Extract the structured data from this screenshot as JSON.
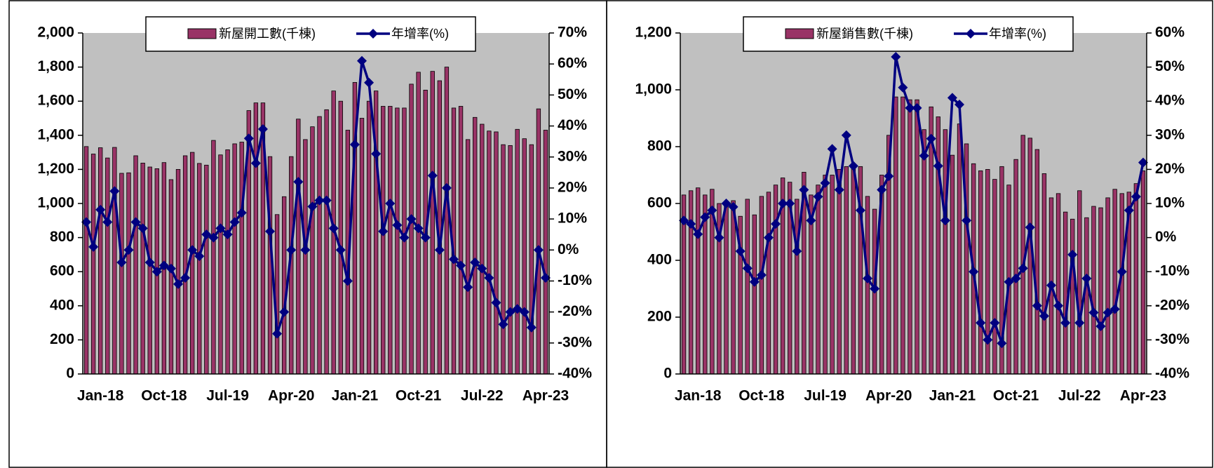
{
  "chart_data": [
    {
      "type": "combo",
      "categories": [
        "Jan-18",
        null,
        null,
        null,
        null,
        null,
        null,
        null,
        null,
        "Oct-18",
        null,
        null,
        null,
        null,
        null,
        null,
        null,
        null,
        "Jul-19",
        null,
        null,
        null,
        null,
        null,
        null,
        null,
        null,
        "Apr-20",
        null,
        null,
        null,
        null,
        null,
        null,
        null,
        null,
        "Jan-21",
        null,
        null,
        null,
        null,
        null,
        null,
        null,
        null,
        "Oct-21",
        null,
        null,
        null,
        null,
        null,
        null,
        null,
        null,
        "Jul-22",
        null,
        null,
        null,
        null,
        null,
        null,
        null,
        null,
        "Apr-23",
        null,
        null
      ],
      "series": [
        {
          "name": "新屋開工數(千棟)",
          "color": "#993366",
          "type": "bar",
          "values": [
            1334,
            1290,
            1327,
            1267,
            1329,
            1177,
            1180,
            1280,
            1237,
            1214,
            1204,
            1240,
            1140,
            1200,
            1280,
            1300,
            1235,
            1225,
            1370,
            1285,
            1315,
            1350,
            1360,
            1545,
            1590,
            1590,
            1275,
            935,
            1040,
            1275,
            1495,
            1375,
            1450,
            1510,
            1550,
            1660,
            1600,
            1430,
            1710,
            1500,
            1600,
            1660,
            1570,
            1570,
            1560,
            1560,
            1700,
            1770,
            1665,
            1775,
            1720,
            1800,
            1560,
            1570,
            1375,
            1505,
            1465,
            1425,
            1420,
            1345,
            1340,
            1435,
            1380,
            1345,
            1555,
            1430
          ]
        },
        {
          "name": "年增率(%)",
          "color": "#000080",
          "type": "line",
          "axis": "y2",
          "values": [
            9,
            1,
            13,
            9,
            19,
            -4,
            0,
            9,
            7,
            -4,
            -7,
            -5,
            -6,
            -11,
            -9,
            0,
            -2,
            5,
            4,
            7,
            5,
            9,
            12,
            36,
            28,
            39,
            6,
            -27,
            -20,
            0,
            22,
            0,
            14,
            16,
            16,
            7,
            0,
            -10,
            34,
            61,
            54,
            31,
            6,
            15,
            8,
            4,
            10,
            7,
            4,
            24,
            0,
            20,
            -3,
            -5,
            -12,
            -4,
            -6,
            -9,
            -17,
            -24,
            -20,
            -19,
            -20,
            -25,
            0,
            -9
          ]
        }
      ],
      "ylim": [
        0,
        2000
      ],
      "yticks": [
        0,
        200,
        400,
        600,
        800,
        {
          "value": 1000,
          "label": "1,000"
        },
        {
          "value": 1200,
          "label": "1,200"
        },
        {
          "value": 1400,
          "label": "1,400"
        },
        {
          "value": 1600,
          "label": "1,600"
        },
        {
          "value": 1800,
          "label": "1,800"
        },
        {
          "value": 2000,
          "label": "2,000"
        }
      ],
      "y2lim": [
        -40,
        70
      ],
      "y2ticks": [
        {
          "value": -40,
          "label": "-40%"
        },
        {
          "value": -30,
          "label": "-30%"
        },
        {
          "value": -20,
          "label": "-20%"
        },
        {
          "value": -10,
          "label": "-10%"
        },
        {
          "value": 0,
          "label": "0%"
        },
        {
          "value": 10,
          "label": "10%"
        },
        {
          "value": 20,
          "label": "20%"
        },
        {
          "value": 30,
          "label": "30%"
        },
        {
          "value": 40,
          "label": "40%"
        },
        {
          "value": 50,
          "label": "50%"
        },
        {
          "value": 60,
          "label": "60%"
        },
        {
          "value": 70,
          "label": "70%"
        }
      ],
      "legend": "top"
    },
    {
      "type": "combo",
      "categories": [
        "Jan-18",
        null,
        null,
        null,
        null,
        null,
        null,
        null,
        null,
        "Oct-18",
        null,
        null,
        null,
        null,
        null,
        null,
        null,
        null,
        "Jul-19",
        null,
        null,
        null,
        null,
        null,
        null,
        null,
        null,
        "Apr-20",
        null,
        null,
        null,
        null,
        null,
        null,
        null,
        null,
        "Jan-21",
        null,
        null,
        null,
        null,
        null,
        null,
        null,
        null,
        "Oct-21",
        null,
        null,
        null,
        null,
        null,
        null,
        null,
        null,
        "Jul-22",
        null,
        null,
        null,
        null,
        null,
        null,
        null,
        null,
        "Apr-23",
        null,
        null
      ],
      "series": [
        {
          "name": "新屋銷售數(千棟)",
          "color": "#993366",
          "type": "bar",
          "values": [
            630,
            645,
            655,
            630,
            650,
            600,
            605,
            610,
            555,
            615,
            560,
            625,
            640,
            665,
            690,
            675,
            615,
            710,
            630,
            665,
            700,
            700,
            720,
            730,
            725,
            730,
            625,
            580,
            700,
            840,
            975,
            975,
            965,
            965,
            860,
            940,
            905,
            860,
            770,
            880,
            810,
            740,
            715,
            720,
            685,
            730,
            665,
            755,
            840,
            830,
            790,
            705,
            620,
            635,
            570,
            545,
            645,
            550,
            590,
            585,
            620,
            650,
            635,
            640,
            670,
            715
          ]
        },
        {
          "name": "年增率(%)",
          "color": "#000080",
          "type": "line",
          "axis": "y2",
          "values": [
            5,
            4,
            1,
            6,
            8,
            0,
            10,
            9,
            -4,
            -9,
            -13,
            -11,
            0,
            4,
            10,
            10,
            -4,
            14,
            5,
            12,
            16,
            26,
            14,
            30,
            21,
            8,
            -12,
            -15,
            14,
            18,
            53,
            44,
            38,
            38,
            24,
            29,
            21,
            5,
            41,
            39,
            5,
            -10,
            -25,
            -30,
            -25,
            -31,
            -13,
            -12,
            -9,
            3,
            -20,
            -23,
            -14,
            -20,
            -25,
            -5,
            -25,
            -12,
            -22,
            -26,
            -22,
            -21,
            -10,
            8,
            12,
            22
          ]
        }
      ],
      "ylim": [
        0,
        1200
      ],
      "yticks": [
        0,
        200,
        400,
        600,
        800,
        {
          "value": 1000,
          "label": "1,000"
        },
        {
          "value": 1200,
          "label": "1,200"
        }
      ],
      "y2lim": [
        -40,
        60
      ],
      "y2ticks": [
        {
          "value": -40,
          "label": "-40%"
        },
        {
          "value": -30,
          "label": "-30%"
        },
        {
          "value": -20,
          "label": "-20%"
        },
        {
          "value": -10,
          "label": "-10%"
        },
        {
          "value": 0,
          "label": "0%"
        },
        {
          "value": 10,
          "label": "10%"
        },
        {
          "value": 20,
          "label": "20%"
        },
        {
          "value": 30,
          "label": "30%"
        },
        {
          "value": 40,
          "label": "40%"
        },
        {
          "value": 50,
          "label": "50%"
        },
        {
          "value": 60,
          "label": "60%"
        }
      ],
      "legend": "top"
    }
  ]
}
